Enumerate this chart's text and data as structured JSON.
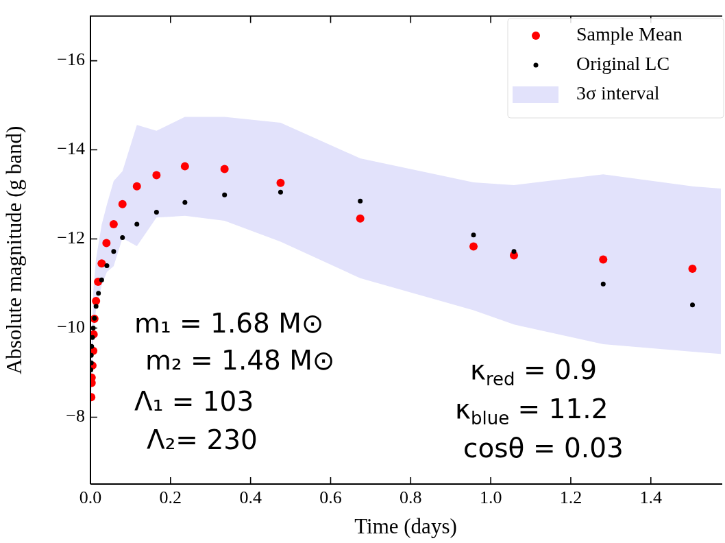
{
  "chart_data": {
    "type": "scatter",
    "xlabel": "Time (days)",
    "ylabel": "Absolute magnitude (g band)",
    "xlim": [
      0,
      1.575
    ],
    "ylim": [
      -6.5,
      -17
    ],
    "xticks": [
      {
        "value": 0,
        "label": "0.0"
      },
      {
        "value": 0.2,
        "label": "0.2"
      },
      {
        "value": 0.4,
        "label": "0.4"
      },
      {
        "value": 0.6,
        "label": "0.6"
      },
      {
        "value": 0.8,
        "label": "0.8"
      },
      {
        "value": 1.0,
        "label": "1.0"
      },
      {
        "value": 1.2,
        "label": "1.2"
      },
      {
        "value": 1.4,
        "label": "1.4"
      }
    ],
    "yticks": [
      {
        "value": -8,
        "label": "−8"
      },
      {
        "value": -10,
        "label": "−10"
      },
      {
        "value": -12,
        "label": "−12"
      },
      {
        "value": -14,
        "label": "−14"
      },
      {
        "value": -16,
        "label": "−16"
      }
    ],
    "legend": "top right",
    "series": [
      {
        "name": "Sample Mean",
        "color": "#ff0000",
        "marker": "circle",
        "x": [
          0.002,
          0.003,
          0.003,
          0.005,
          0.007,
          0.008,
          0.01,
          0.014,
          0.019,
          0.028,
          0.04,
          0.058,
          0.08,
          0.116,
          0.165,
          0.236,
          0.335,
          0.475,
          0.674,
          0.957,
          1.058,
          1.281,
          1.504
        ],
        "values": [
          -8.45,
          -8.77,
          -8.89,
          -9.16,
          -9.49,
          -9.86,
          -10.21,
          -10.61,
          -11.04,
          -11.45,
          -11.91,
          -12.33,
          -12.78,
          -13.18,
          -13.43,
          -13.63,
          -13.57,
          -13.26,
          -12.46,
          -11.83,
          -11.63,
          -11.54,
          -11.33
        ]
      },
      {
        "name": "Original LC",
        "color": "#000000",
        "marker": "circle",
        "x": [
          0.001,
          0.002,
          0.002,
          0.003,
          0.005,
          0.007,
          0.01,
          0.014,
          0.02,
          0.028,
          0.041,
          0.058,
          0.08,
          0.116,
          0.165,
          0.236,
          0.335,
          0.475,
          0.674,
          0.957,
          1.058,
          1.281,
          1.504
        ],
        "values": [
          -9.06,
          -9.22,
          -9.39,
          -9.59,
          -9.79,
          -10.0,
          -10.22,
          -10.49,
          -10.78,
          -11.08,
          -11.4,
          -11.72,
          -12.03,
          -12.33,
          -12.6,
          -12.82,
          -12.99,
          -13.05,
          -12.85,
          -12.09,
          -11.72,
          -10.99,
          -10.52
        ]
      },
      {
        "name": "3σ interval",
        "type": "area",
        "color": "#e2e2fb",
        "x": [
          0.002,
          0.007,
          0.014,
          0.028,
          0.041,
          0.058,
          0.08,
          0.116,
          0.165,
          0.236,
          0.335,
          0.475,
          0.674,
          0.957,
          1.058,
          1.281,
          1.504,
          1.575
        ],
        "lower": [
          -8.39,
          -9.75,
          -10.43,
          -10.96,
          -11.26,
          -11.39,
          -12.02,
          -11.84,
          -12.48,
          -12.52,
          -12.41,
          -11.94,
          -11.12,
          -10.4,
          -10.08,
          -9.64,
          -9.47,
          -9.42
        ],
        "values": [
          null,
          null,
          null,
          null,
          null,
          null,
          null,
          null,
          null,
          null,
          null,
          null,
          null,
          null,
          null,
          null,
          null,
          null
        ],
        "upper": [
          -9.3,
          -10.81,
          -11.56,
          -12.32,
          -12.77,
          -13.3,
          -13.52,
          -14.56,
          -14.43,
          -14.74,
          -14.74,
          -14.61,
          -13.81,
          -13.27,
          -13.21,
          -13.45,
          -13.18,
          -13.13
        ]
      }
    ],
    "annotations": [
      "m₁ = 1.68 M⊙",
      "m₂ = 1.48 M⊙",
      "Λ₁ = 103",
      "Λ₂= 230",
      "κ$_{red}$ = 0.9",
      "κ$_{blue}$ = 11.2",
      "cosθ = 0.03"
    ]
  }
}
